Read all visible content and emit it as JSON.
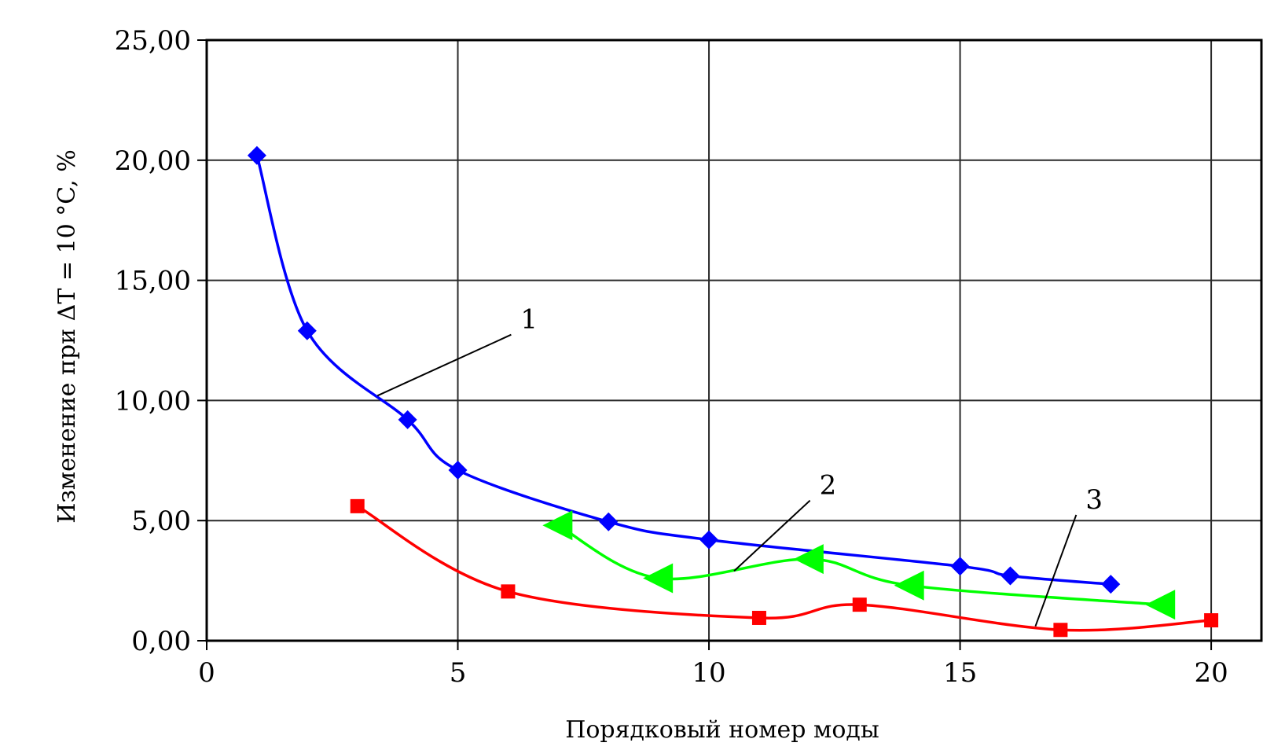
{
  "chart_data": {
    "type": "line",
    "xlabel": "Порядковый номер моды",
    "ylabel": "Изменение при  ΔT = 10 °C,  %",
    "xlim": [
      0,
      21
    ],
    "ylim": [
      0,
      25
    ],
    "x_ticks": [
      0,
      5,
      10,
      15,
      20
    ],
    "x_tick_labels": [
      "0",
      "5",
      "10",
      "15",
      "20"
    ],
    "y_ticks": [
      0,
      5,
      10,
      15,
      20,
      25
    ],
    "y_tick_labels": [
      "0,00",
      "5,00",
      "10,00",
      "15,00",
      "20,00",
      "25,00"
    ],
    "grid": true,
    "series": [
      {
        "label": "1",
        "color": "#0000ff",
        "marker": "diamond",
        "points": [
          [
            1,
            20.2
          ],
          [
            2,
            12.9
          ],
          [
            4,
            9.2
          ],
          [
            5,
            7.1
          ],
          [
            8,
            4.95
          ],
          [
            10,
            4.2
          ],
          [
            15,
            3.1
          ],
          [
            16,
            2.7
          ],
          [
            18,
            2.35
          ]
        ],
        "smoothed": true,
        "line_extends_to": [],
        "callout_label_at": [
          6.25,
          13.0
        ],
        "callout_target": [
          3.4,
          10.2
        ]
      },
      {
        "label": "2",
        "color": "#00ff00",
        "marker": "triangle-left",
        "points": [
          [
            7,
            4.8
          ],
          [
            9,
            2.6
          ],
          [
            12,
            3.4
          ],
          [
            14,
            2.3
          ],
          [
            19,
            1.5
          ]
        ],
        "smoothed": true,
        "callout_label_at": [
          12.2,
          6.1
        ],
        "callout_target": [
          10.5,
          2.9
        ]
      },
      {
        "label": "3",
        "color": "#ff0000",
        "marker": "square",
        "points": [
          [
            3,
            5.6
          ],
          [
            6,
            2.05
          ],
          [
            11,
            0.95
          ],
          [
            13,
            1.5
          ],
          [
            17,
            0.45
          ],
          [
            20,
            0.85
          ]
        ],
        "smoothed": true,
        "callout_label_at": [
          17.5,
          5.5
        ],
        "callout_target": [
          16.5,
          0.6
        ]
      }
    ]
  }
}
